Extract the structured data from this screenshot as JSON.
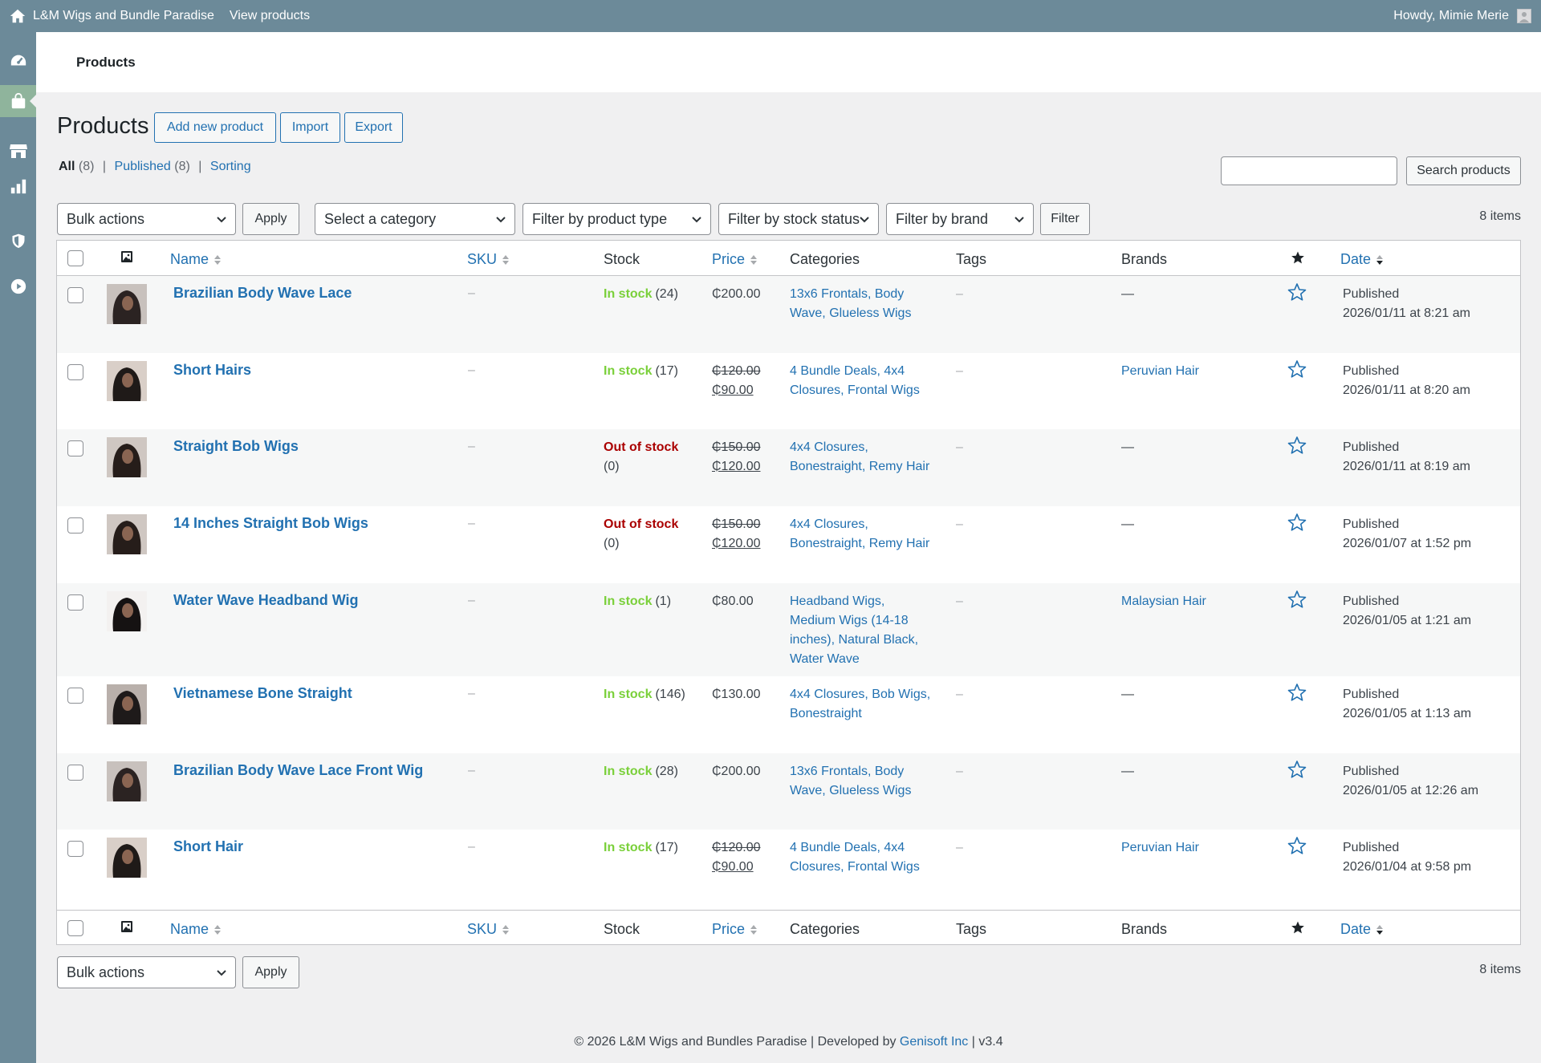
{
  "adminbar": {
    "site_name": "L&M Wigs and Bundle Paradise",
    "view_products": "View products",
    "howdy": "Howdy, Mimie Merie"
  },
  "header": {
    "title": "Products"
  },
  "page": {
    "title": "Products",
    "add_new": "Add new product",
    "import": "Import",
    "export": "Export"
  },
  "subsub": {
    "all": "All",
    "all_count": "(8)",
    "published": "Published",
    "published_count": "(8)",
    "sorting": "Sorting",
    "separator": "|"
  },
  "search": {
    "placeholder": "",
    "button": "Search products"
  },
  "filters": {
    "bulk_actions": "Bulk actions",
    "apply": "Apply",
    "category": "Select a category",
    "product_type": "Filter by product type",
    "stock_status": "Filter by stock status",
    "brand": "Filter by brand",
    "filter": "Filter",
    "items_count": "8 items"
  },
  "columns": {
    "name": "Name",
    "sku": "SKU",
    "stock": "Stock",
    "price": "Price",
    "categories": "Categories",
    "tags": "Tags",
    "brands": "Brands",
    "date": "Date"
  },
  "products": [
    {
      "name": "Brazilian Body Wave Lace",
      "sku": "–",
      "stock_status": "In stock",
      "stock_qty": "(24)",
      "price_regular": "",
      "price": "₵200.00",
      "cat_line1": "13x6 Frontals, Body",
      "cat_line2": "Wave, Glueless Wigs",
      "cat_line3": "",
      "cat_line4": "",
      "tags": "–",
      "brand": "—",
      "date_status": "Published",
      "date": "2026/01/11 at 8:21 am"
    },
    {
      "name": "Short Hairs",
      "sku": "–",
      "stock_status": "In stock",
      "stock_qty": "(17)",
      "price_regular": "₵120.00",
      "price": "₵90.00",
      "cat_line1": "4 Bundle Deals, 4x4",
      "cat_line2": "Closures, Frontal Wigs",
      "cat_line3": "",
      "cat_line4": "",
      "tags": "–",
      "brand": "Peruvian Hair",
      "date_status": "Published",
      "date": "2026/01/11 at 8:20 am"
    },
    {
      "name": "Straight Bob Wigs",
      "sku": "–",
      "stock_status": "Out of stock",
      "stock_qty": "(0)",
      "price_regular": "₵150.00",
      "price": "₵120.00",
      "cat_line1": "4x4 Closures,",
      "cat_line2": "Bonestraight, Remy Hair",
      "cat_line3": "",
      "cat_line4": "",
      "tags": "–",
      "brand": "—",
      "date_status": "Published",
      "date": "2026/01/11 at 8:19 am"
    },
    {
      "name": "14 Inches Straight Bob Wigs",
      "sku": "–",
      "stock_status": "Out of stock",
      "stock_qty": "(0)",
      "price_regular": "₵150.00",
      "price": "₵120.00",
      "cat_line1": "4x4 Closures,",
      "cat_line2": "Bonestraight, Remy Hair",
      "cat_line3": "",
      "cat_line4": "",
      "tags": "–",
      "brand": "—",
      "date_status": "Published",
      "date": "2026/01/07 at 1:52 pm"
    },
    {
      "name": "Water Wave Headband Wig",
      "sku": "–",
      "stock_status": "In stock",
      "stock_qty": "(1)",
      "price_regular": "",
      "price": "₵80.00",
      "cat_line1": "Headband Wigs,",
      "cat_line2": "Medium Wigs (14-18",
      "cat_line3": "inches), Natural Black,",
      "cat_line4": "Water Wave",
      "tags": "–",
      "brand": "Malaysian Hair",
      "date_status": "Published",
      "date": "2026/01/05 at 1:21 am"
    },
    {
      "name": "Vietnamese Bone Straight",
      "sku": "–",
      "stock_status": "In stock",
      "stock_qty": "(146)",
      "price_regular": "",
      "price": "₵130.00",
      "cat_line1": "4x4 Closures, Bob Wigs,",
      "cat_line2": "Bonestraight",
      "cat_line3": "",
      "cat_line4": "",
      "tags": "–",
      "brand": "—",
      "date_status": "Published",
      "date": "2026/01/05 at 1:13 am"
    },
    {
      "name": "Brazilian Body Wave Lace Front Wig",
      "sku": "–",
      "stock_status": "In stock",
      "stock_qty": "(28)",
      "price_regular": "",
      "price": "₵200.00",
      "cat_line1": "13x6 Frontals, Body",
      "cat_line2": "Wave, Glueless Wigs",
      "cat_line3": "",
      "cat_line4": "",
      "tags": "–",
      "brand": "—",
      "date_status": "Published",
      "date": "2026/01/05 at 12:26 am"
    },
    {
      "name": "Short Hair",
      "sku": "–",
      "stock_status": "In stock",
      "stock_qty": "(17)",
      "price_regular": "₵120.00",
      "price": "₵90.00",
      "cat_line1": "4 Bundle Deals, 4x4",
      "cat_line2": "Closures, Frontal Wigs",
      "cat_line3": "",
      "cat_line4": "",
      "tags": "–",
      "brand": "Peruvian Hair",
      "date_status": "Published",
      "date": "2026/01/04 at 9:58 pm"
    }
  ],
  "footer": {
    "text": "© 2026 L&M Wigs and Bundles Paradise | Developed by",
    "developer": "Genisoft Inc",
    "version": "| v3.4"
  },
  "colors": {
    "adminbar": "#6c8a99",
    "link": "#2271b1",
    "in_stock": "#7ad03a",
    "out_of_stock": "#aa0000",
    "active_menu": "#8fb49c"
  },
  "icons": {
    "home": "home-icon",
    "dashboard": "dashboard-icon",
    "products": "shopping-bag-icon",
    "store": "storefront-icon",
    "analytics": "bar-chart-icon",
    "security": "shield-icon",
    "media": "play-icon",
    "featured": "star-icon"
  }
}
